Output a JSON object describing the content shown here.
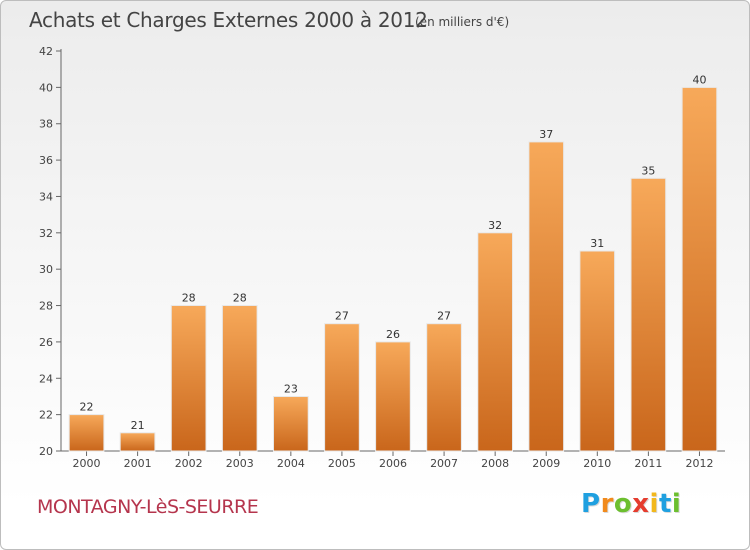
{
  "header": {
    "title": "Achats et Charges Externes 2000 à 2012",
    "subtitle": "(en milliers d'€)"
  },
  "footer": {
    "place": "MONTAGNY-LèS-SEURRE",
    "logo": [
      "P",
      "r",
      "o",
      "x",
      "i",
      "t",
      "i"
    ]
  },
  "chart_data": {
    "type": "bar",
    "title": "Achats et Charges Externes 2000 à 2012",
    "subtitle": "(en milliers d'€)",
    "xlabel": "",
    "ylabel": "",
    "categories": [
      "2000",
      "2001",
      "2002",
      "2003",
      "2004",
      "2005",
      "2006",
      "2007",
      "2008",
      "2009",
      "2010",
      "2011",
      "2012"
    ],
    "values": [
      22,
      21,
      28,
      28,
      23,
      27,
      26,
      27,
      32,
      37,
      31,
      35,
      40
    ],
    "ylim": [
      20,
      42
    ],
    "yticks": [
      20,
      22,
      24,
      26,
      28,
      30,
      32,
      34,
      36,
      38,
      40,
      42
    ],
    "grid": false,
    "legend": "none",
    "colors": {
      "bar_top": "#f7a95a",
      "bar_bottom": "#c9661b",
      "axis": "#666666"
    }
  }
}
